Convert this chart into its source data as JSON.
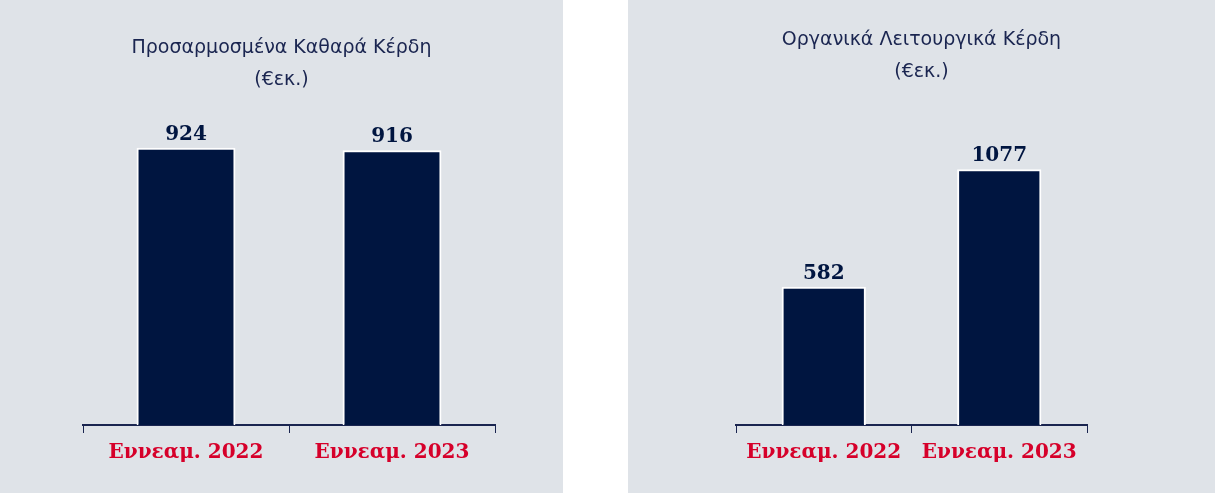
{
  "chart_data": [
    {
      "type": "bar",
      "title": "Προσαρμοσμένα Καθαρά Κέρδη",
      "subtitle": "(€εκ.)",
      "categories": [
        "Εννεαμ. 2022",
        "Εννεαμ. 2023"
      ],
      "values": [
        924,
        916
      ],
      "color": "#001540",
      "data_labels": true,
      "tick_labels": "x",
      "grid": false,
      "legend": false
    },
    {
      "type": "bar",
      "title": "Οργανικά Λειτουργικά Κέρδη",
      "subtitle": "(€εκ.)",
      "categories": [
        "Εννεαμ. 2022",
        "Εννεαμ. 2023"
      ],
      "values": [
        582,
        1077
      ],
      "color": "#001540",
      "data_labels": true,
      "tick_labels": "x",
      "grid": false,
      "legend": false
    }
  ]
}
